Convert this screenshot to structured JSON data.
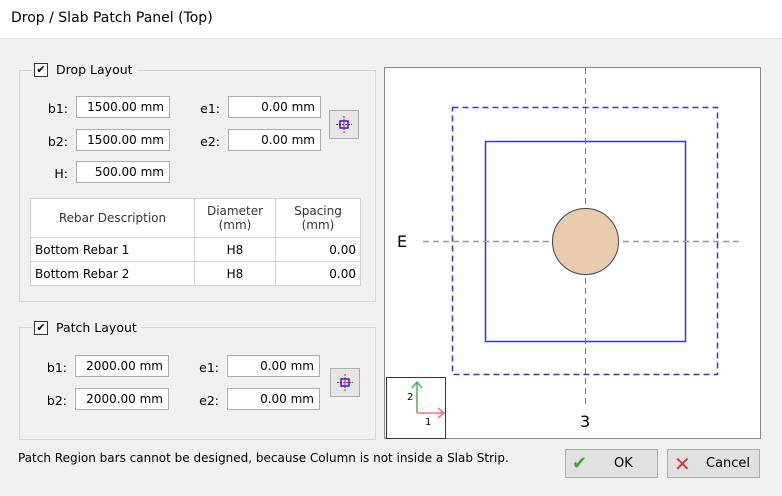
{
  "window": {
    "title": "Drop / Slab Patch Panel (Top)"
  },
  "drop": {
    "title": "Drop Layout",
    "checked": true,
    "b1_label": "b1:",
    "b1": "1500.00 mm",
    "b2_label": "b2:",
    "b2": "1500.00 mm",
    "h_label": "H:",
    "h": "500.00 mm",
    "e1_label": "e1:",
    "e1": "0.00 mm",
    "e2_label": "e2:",
    "e2": "0.00 mm",
    "table": {
      "headers": [
        "Rebar Description",
        "Diameter\n(mm)",
        "Spacing\n(mm)"
      ],
      "rows": [
        [
          "Bottom Rebar 1",
          "H8",
          "0.00"
        ],
        [
          "Bottom Rebar 2",
          "H8",
          "0.00"
        ]
      ]
    }
  },
  "patch": {
    "title": "Patch Layout",
    "checked": true,
    "b1_label": "b1:",
    "b1": "2000.00 mm",
    "b2_label": "b2:",
    "b2": "2000.00 mm",
    "e1_label": "e1:",
    "e1": "0.00 mm",
    "e2_label": "e2:",
    "e2": "0.00 mm"
  },
  "preview": {
    "grid_row": "E",
    "grid_col": "3",
    "axis_1": "1",
    "axis_2": "2"
  },
  "message": "Patch Region bars cannot be designed, because Column is not inside a Slab Strip.",
  "buttons": {
    "ok": "OK",
    "cancel": "Cancel"
  }
}
